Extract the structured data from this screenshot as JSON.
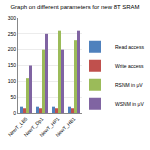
{
  "chart_data": {
    "type": "bar",
    "title": "Graph on different parameters for new 8T SRAM",
    "categories": [
      "NewT_LB5",
      "NewT_Dp1",
      "NewT_HP1",
      "NewT_HB1"
    ],
    "series": [
      {
        "name": "Read access",
        "color": "#4f81bd",
        "values": [
          20,
          20,
          20,
          20
        ]
      },
      {
        "name": "Write access",
        "color": "#c0504d",
        "values": [
          15,
          15,
          15,
          15
        ]
      },
      {
        "name": "RSNM in μV",
        "color": "#9bbb59",
        "values": [
          110,
          200,
          260,
          230
        ]
      },
      {
        "name": "WSNM in μV",
        "color": "#8064a2",
        "values": [
          150,
          250,
          200,
          260
        ]
      }
    ],
    "ylim": [
      0,
      300
    ],
    "yticks": [
      0,
      50,
      100,
      150,
      200,
      250,
      300
    ],
    "grid": true,
    "legend": "right"
  }
}
